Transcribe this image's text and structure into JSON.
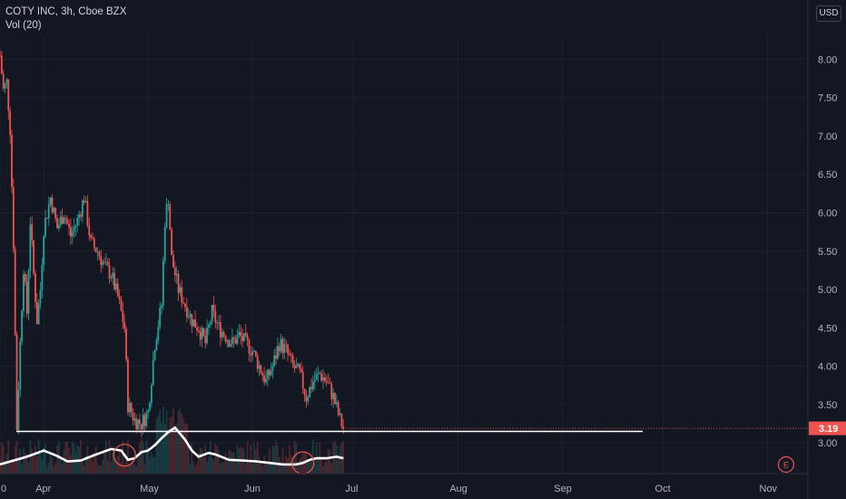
{
  "legend": {
    "symbol": "COTY INC, 3h, Cboe BZX",
    "volume": "Vol (20)"
  },
  "currency": "USD",
  "last_price": "3.19",
  "colors": {
    "up": "#26a69a",
    "down": "#ef5350",
    "background": "#131722",
    "volume_ma": "#ffffff",
    "support_line": "#ffffff",
    "price_tag": "#ef5350",
    "earnings_marker": "#ef5350"
  },
  "chart_data": {
    "type": "candlestick",
    "ylim": [
      2.6,
      8.3
    ],
    "yticks": [
      "8.00",
      "7.50",
      "7.00",
      "6.50",
      "6.00",
      "5.50",
      "5.00",
      "4.50",
      "4.00",
      "3.50",
      "3.00"
    ],
    "xticks": [
      {
        "label": "0",
        "x": 0
      },
      {
        "label": "Apr",
        "x": 13
      },
      {
        "label": "May",
        "x": 44
      },
      {
        "label": "Jun",
        "x": 75
      },
      {
        "label": "Jul",
        "x": 105
      },
      {
        "label": "Aug",
        "x": 136
      },
      {
        "label": "Sep",
        "x": 167
      },
      {
        "label": "Oct",
        "x": 197
      },
      {
        "label": "Nov",
        "x": 228
      }
    ],
    "price_path": [
      [
        0,
        8.05
      ],
      [
        1,
        7.6
      ],
      [
        2,
        7.7
      ],
      [
        3,
        7.1
      ],
      [
        4,
        5.6
      ],
      [
        5,
        3.2
      ],
      [
        6,
        4.3
      ],
      [
        7,
        5.3
      ],
      [
        8,
        4.7
      ],
      [
        9,
        5.9
      ],
      [
        10,
        5.2
      ],
      [
        11,
        4.6
      ],
      [
        12,
        5.0
      ],
      [
        13,
        5.8
      ],
      [
        15,
        6.2
      ],
      [
        17,
        5.8
      ],
      [
        19,
        6.0
      ],
      [
        21,
        5.7
      ],
      [
        23,
        5.9
      ],
      [
        25,
        6.2
      ],
      [
        27,
        5.6
      ],
      [
        29,
        5.5
      ],
      [
        31,
        5.3
      ],
      [
        33,
        5.2
      ],
      [
        35,
        4.9
      ],
      [
        37,
        4.5
      ],
      [
        38,
        3.5
      ],
      [
        40,
        3.3
      ],
      [
        42,
        3.25
      ],
      [
        44,
        3.4
      ],
      [
        46,
        4.3
      ],
      [
        48,
        4.8
      ],
      [
        49,
        5.9
      ],
      [
        50,
        6.2
      ],
      [
        51,
        5.4
      ],
      [
        53,
        5.0
      ],
      [
        55,
        4.8
      ],
      [
        57,
        4.6
      ],
      [
        59,
        4.5
      ],
      [
        61,
        4.3
      ],
      [
        63,
        4.7
      ],
      [
        65,
        4.5
      ],
      [
        67,
        4.4
      ],
      [
        69,
        4.3
      ],
      [
        71,
        4.4
      ],
      [
        73,
        4.3
      ],
      [
        75,
        4.2
      ],
      [
        77,
        4.0
      ],
      [
        79,
        3.8
      ],
      [
        81,
        4.0
      ],
      [
        83,
        4.3
      ],
      [
        85,
        4.2
      ],
      [
        87,
        4.0
      ],
      [
        89,
        3.9
      ],
      [
        91,
        3.6
      ],
      [
        93,
        3.8
      ],
      [
        95,
        3.9
      ],
      [
        97,
        3.8
      ],
      [
        99,
        3.6
      ],
      [
        101,
        3.3
      ],
      [
        102,
        3.19
      ]
    ],
    "volume_ma": [
      [
        0,
        2.72
      ],
      [
        8,
        2.82
      ],
      [
        13,
        2.9
      ],
      [
        17,
        2.83
      ],
      [
        20,
        2.76
      ],
      [
        24,
        2.77
      ],
      [
        28,
        2.84
      ],
      [
        33,
        2.92
      ],
      [
        36,
        2.9
      ],
      [
        38,
        2.78
      ],
      [
        40,
        2.8
      ],
      [
        42,
        2.88
      ],
      [
        44,
        2.9
      ],
      [
        46,
        2.97
      ],
      [
        48,
        3.06
      ],
      [
        50,
        3.14
      ],
      [
        52,
        3.2
      ],
      [
        55,
        3.04
      ],
      [
        57,
        2.9
      ],
      [
        59,
        2.82
      ],
      [
        62,
        2.87
      ],
      [
        64,
        2.85
      ],
      [
        68,
        2.78
      ],
      [
        72,
        2.77
      ],
      [
        76,
        2.76
      ],
      [
        80,
        2.74
      ],
      [
        84,
        2.72
      ],
      [
        88,
        2.72
      ],
      [
        90,
        2.74
      ],
      [
        92,
        2.78
      ],
      [
        94,
        2.8
      ],
      [
        97,
        2.8
      ],
      [
        100,
        2.82
      ],
      [
        102,
        2.8
      ]
    ],
    "support_level": 3.15,
    "volume_ma_circles": [
      37,
      90
    ],
    "earnings_marker": "E",
    "x_range": [
      0,
      240
    ]
  }
}
